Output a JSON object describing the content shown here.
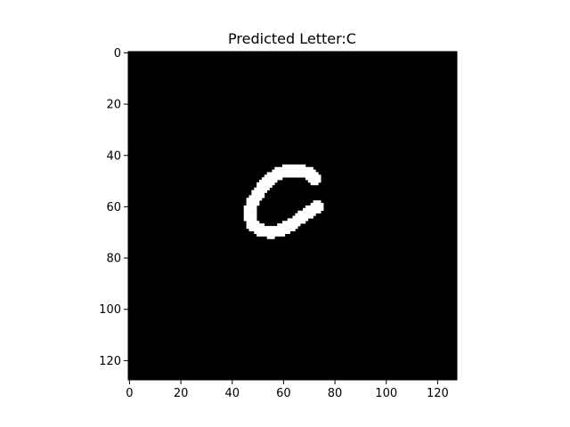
{
  "chart_data": {
    "type": "image",
    "title": "Predicted Letter:C",
    "xlabel": "",
    "ylabel": "",
    "xlim": [
      -0.5,
      127.5
    ],
    "ylim": [
      127.5,
      -0.5
    ],
    "x_ticks": [
      0,
      20,
      40,
      60,
      80,
      100,
      120
    ],
    "y_ticks": [
      0,
      20,
      40,
      60,
      80,
      100,
      120
    ],
    "grid": false,
    "image_size": [
      128,
      128
    ],
    "colors": {
      "background": "#000000",
      "foreground": "#ffffff"
    },
    "stroke_path": [
      [
        72,
        49
      ],
      [
        70,
        47
      ],
      [
        67,
        46
      ],
      [
        64,
        46
      ],
      [
        61,
        46
      ],
      [
        58,
        47
      ],
      [
        55,
        49
      ],
      [
        52,
        52
      ],
      [
        50,
        55
      ],
      [
        48,
        58
      ],
      [
        47,
        61
      ],
      [
        47,
        64
      ],
      [
        48,
        67
      ],
      [
        51,
        69
      ],
      [
        55,
        70
      ],
      [
        59,
        69
      ],
      [
        63,
        67
      ],
      [
        67,
        64
      ],
      [
        70,
        62
      ],
      [
        73,
        60
      ]
    ],
    "stroke_width": 2.4
  }
}
